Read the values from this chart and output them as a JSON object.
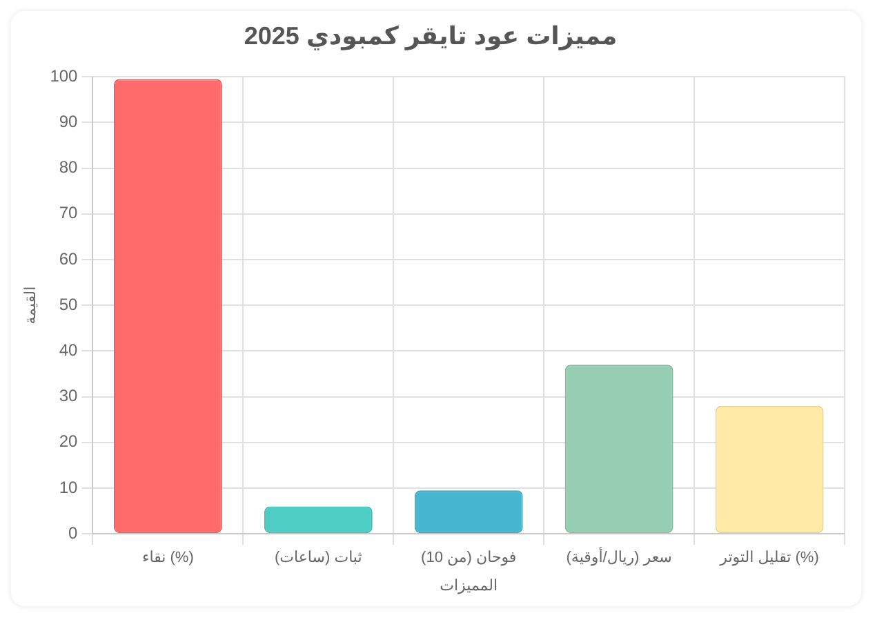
{
  "chart_data": {
    "type": "bar",
    "title": "مميزات عود تايقر كمبودي 2025",
    "xlabel": "المميزات",
    "ylabel": "القيمة",
    "categories": [
      "نقاء (%)",
      "ثبات (ساعات)",
      "فوحان (من 10)",
      "سعر (ريال/أوقية)",
      "تقليل التوتر (%)"
    ],
    "values": [
      99.5,
      6,
      9.5,
      37,
      28
    ],
    "colors": [
      "#ff6b6b",
      "#4ecdc4",
      "#45b7d1",
      "#96ceb4",
      "#ffeaa7"
    ],
    "ylim": [
      0,
      100
    ],
    "yticks": [
      0,
      10,
      20,
      30,
      40,
      50,
      60,
      70,
      80,
      90,
      100
    ],
    "grid": true,
    "legend": false
  }
}
